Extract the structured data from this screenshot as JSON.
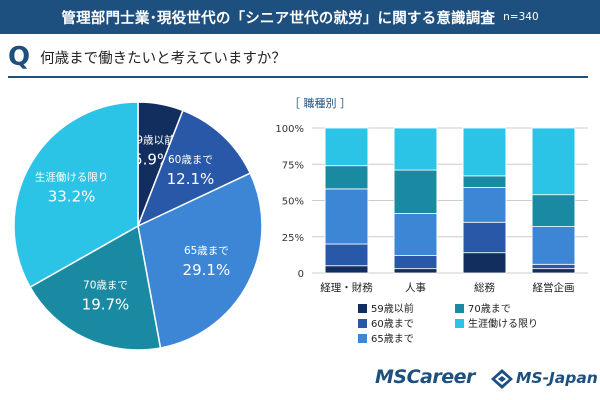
{
  "header": {
    "title": "管理部門士業･現役世代の「シニア世代の就労」に関する意識調査",
    "sample": "n=340"
  },
  "question": {
    "mark": "Q",
    "text": "何歳まで働きたいと考えていますか？"
  },
  "footer": {
    "brand_primary": "MSCareer",
    "brand_secondary": "MS-Japan"
  },
  "colors": {
    "header_bg": "#1d4f7f",
    "59歳以前": "#122e5f",
    "60歳まで": "#2958a8",
    "65歳まで": "#3d86d6",
    "70歳まで": "#1a8aa2",
    "生涯働ける限り": "#2bc4e6"
  },
  "chart_data": [
    {
      "type": "pie",
      "slices": [
        {
          "label": "59歳以前",
          "value": 5.9,
          "value_label": "5.9%"
        },
        {
          "label": "60歳まで",
          "value": 12.1,
          "value_label": "12.1%"
        },
        {
          "label": "65歳まで",
          "value": 29.1,
          "value_label": "29.1%"
        },
        {
          "label": "70歳まで",
          "value": 19.7,
          "value_label": "19.7%"
        },
        {
          "label": "生涯働ける限り",
          "value": 33.2,
          "value_label": "33.2%"
        }
      ]
    },
    {
      "type": "bar",
      "stacked": true,
      "title": "［ 職種別 ］",
      "categories": [
        "経理・財務",
        "人事",
        "総務",
        "経営企画"
      ],
      "ylim": [
        0,
        100
      ],
      "yticks": [
        "0",
        "25%",
        "50%",
        "75%",
        "100%"
      ],
      "grid": true,
      "legend_position": "bottom",
      "series": [
        {
          "name": "59歳以前",
          "values": [
            5,
            3,
            14,
            3
          ]
        },
        {
          "name": "60歳まで",
          "values": [
            15,
            9,
            21,
            3
          ]
        },
        {
          "name": "65歳まで",
          "values": [
            38,
            29,
            24,
            26
          ]
        },
        {
          "name": "70歳まで",
          "values": [
            16,
            30,
            8,
            22
          ]
        },
        {
          "name": "生涯働ける限り",
          "values": [
            26,
            29,
            33,
            46
          ]
        }
      ],
      "legend": [
        "59歳以前",
        "70歳まで",
        "60歳まで",
        "生涯働ける限り",
        "65歳まで"
      ]
    }
  ]
}
